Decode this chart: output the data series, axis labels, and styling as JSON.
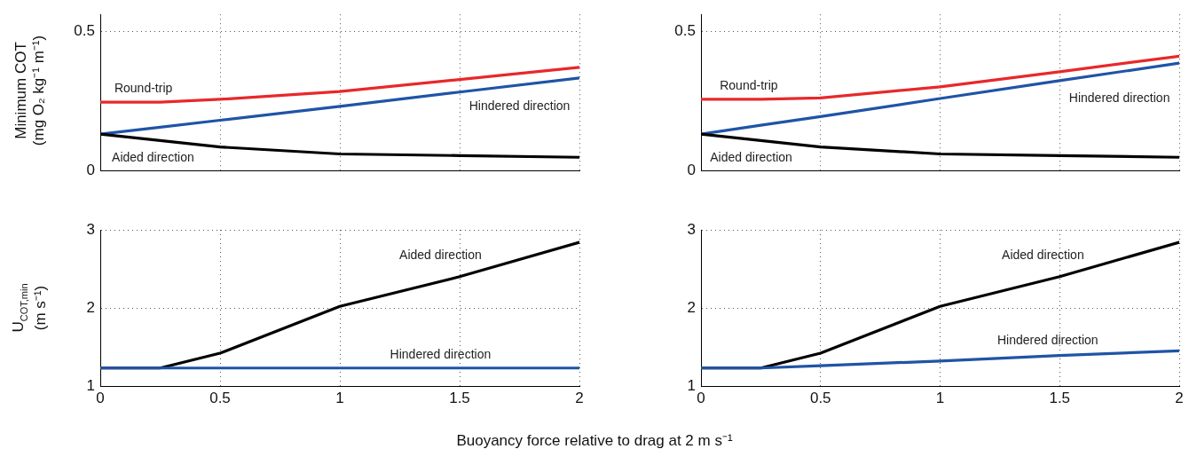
{
  "chart_data": [
    {
      "type": "line",
      "ylabel": "Minimum COT\n(mg O₂ kg⁻¹ m⁻¹)",
      "x": [
        0,
        0.25,
        0.5,
        1,
        1.5,
        2
      ],
      "xlim": [
        0,
        2
      ],
      "xticks": [
        0,
        0.5,
        1,
        1.5,
        2
      ],
      "ylim": [
        0,
        0.56
      ],
      "yticks": [
        0,
        0.5
      ],
      "grid": true,
      "legend": false,
      "tick_labels": "y",
      "line_style": "solid",
      "marker": "none",
      "series": [
        {
          "name": "Round-trip",
          "color": "#e8282b",
          "values": [
            0.245,
            0.245,
            0.255,
            0.283,
            0.326,
            0.37
          ]
        },
        {
          "name": "Hindered direction",
          "color": "#1f54a6",
          "values": [
            0.13,
            0.155,
            0.18,
            0.23,
            0.281,
            0.332
          ]
        },
        {
          "name": "Aided direction",
          "color": "#000000",
          "values": [
            0.13,
            0.107,
            0.084,
            0.059,
            0.053,
            0.047
          ]
        }
      ]
    },
    {
      "type": "line",
      "x": [
        0,
        0.25,
        0.5,
        1,
        1.5,
        2
      ],
      "xlim": [
        0,
        2
      ],
      "xticks": [
        0,
        0.5,
        1,
        1.5,
        2
      ],
      "ylim": [
        0,
        0.56
      ],
      "yticks": [
        0,
        0.5
      ],
      "grid": true,
      "legend": false,
      "tick_labels": "y",
      "line_style": "solid",
      "marker": "none",
      "series": [
        {
          "name": "Round-trip",
          "color": "#e8282b",
          "values": [
            0.255,
            0.255,
            0.26,
            0.3,
            0.354,
            0.41
          ]
        },
        {
          "name": "Hindered direction",
          "color": "#1f54a6",
          "values": [
            0.13,
            0.162,
            0.193,
            0.258,
            0.322,
            0.385
          ]
        },
        {
          "name": "Aided direction",
          "color": "#000000",
          "values": [
            0.13,
            0.107,
            0.084,
            0.059,
            0.053,
            0.047
          ]
        }
      ]
    },
    {
      "type": "line",
      "ylabel": "U$_{COT,min}$\n(m s⁻¹)",
      "xlabel": "Buoyancy force relative to drag at 2 m s⁻¹",
      "x": [
        0,
        0.25,
        0.5,
        1,
        1.5,
        2
      ],
      "xlim": [
        0,
        2
      ],
      "xticks": [
        0,
        0.5,
        1,
        1.5,
        2
      ],
      "ylim": [
        1,
        3
      ],
      "yticks": [
        1,
        2,
        3
      ],
      "grid": true,
      "legend": false,
      "line_style": "solid",
      "marker": "none",
      "series": [
        {
          "name": "Aided direction",
          "color": "#000000",
          "values": [
            1.23,
            1.23,
            1.42,
            2.02,
            2.4,
            2.84
          ]
        },
        {
          "name": "Hindered direction",
          "color": "#1f54a6",
          "values": [
            1.23,
            1.23,
            1.23,
            1.23,
            1.23,
            1.23
          ]
        }
      ]
    },
    {
      "type": "line",
      "x": [
        0,
        0.25,
        0.5,
        1,
        1.5,
        2
      ],
      "xlim": [
        0,
        2
      ],
      "xticks": [
        0,
        0.5,
        1,
        1.5,
        2
      ],
      "ylim": [
        1,
        3
      ],
      "yticks": [
        1,
        2,
        3
      ],
      "grid": true,
      "legend": false,
      "line_style": "solid",
      "marker": "none",
      "series": [
        {
          "name": "Aided direction",
          "color": "#000000",
          "values": [
            1.23,
            1.23,
            1.42,
            2.02,
            2.4,
            2.84
          ]
        },
        {
          "name": "Hindered direction",
          "color": "#1f54a6",
          "values": [
            1.23,
            1.23,
            1.26,
            1.32,
            1.39,
            1.45
          ]
        }
      ]
    }
  ]
}
